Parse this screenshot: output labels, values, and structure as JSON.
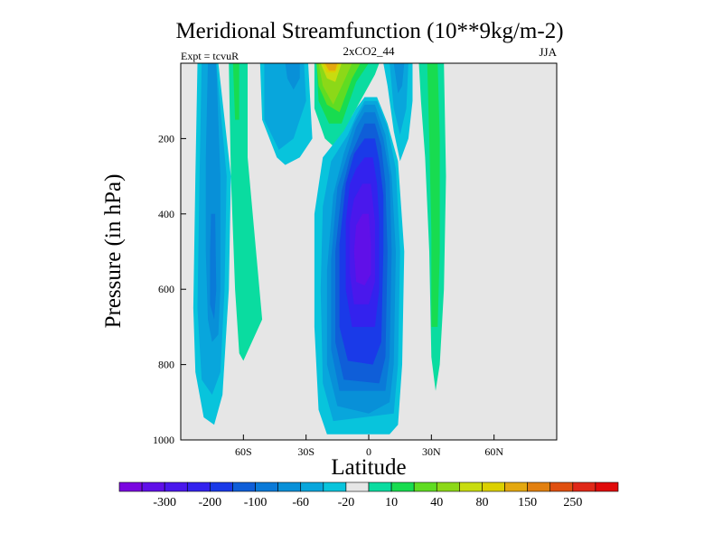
{
  "chart_data": {
    "type": "heatmap",
    "title": "Meridional Streamfunction (10**9kg/m-2)",
    "subtitle": "2xCO2_44",
    "left_label": "Expt = tcvuR",
    "right_label": "JJA",
    "xlabel": "Latitude",
    "ylabel": "Pressure (in hPa)",
    "xlim": [
      -90,
      90
    ],
    "ylim": [
      0,
      1000
    ],
    "y_inverted": true,
    "xticks": [
      {
        "value": -60,
        "label": "60S"
      },
      {
        "value": -30,
        "label": "30S"
      },
      {
        "value": 0,
        "label": "0"
      },
      {
        "value": 30,
        "label": "30N"
      },
      {
        "value": 60,
        "label": "60N"
      }
    ],
    "yticks": [
      {
        "value": 200,
        "label": "200"
      },
      {
        "value": 400,
        "label": "400"
      },
      {
        "value": 600,
        "label": "600"
      },
      {
        "value": 800,
        "label": "800"
      },
      {
        "value": 1000,
        "label": "1000"
      }
    ],
    "background_color": "#e6e6e6",
    "colorbar": {
      "colors": [
        "#7a06e0",
        "#6010e8",
        "#4a18ec",
        "#3322ee",
        "#1a3ae8",
        "#0f5ed8",
        "#0a7ad8",
        "#0890d8",
        "#08a6dc",
        "#08c4dc",
        "#e6e6e6",
        "#0adca0",
        "#18dc50",
        "#60dc22",
        "#8cd818",
        "#c8dc10",
        "#dcd000",
        "#e4a810",
        "#e28010",
        "#e05010",
        "#e02818",
        "#e00a0a"
      ],
      "labels": [
        {
          "after": 1,
          "text": "-300"
        },
        {
          "after": 3,
          "text": "-200"
        },
        {
          "after": 5,
          "text": "-100"
        },
        {
          "after": 7,
          "text": "-60"
        },
        {
          "after": 9,
          "text": "-20"
        },
        {
          "after": 11,
          "text": "10"
        },
        {
          "after": 13,
          "text": "40"
        },
        {
          "after": 15,
          "text": "80"
        },
        {
          "after": 17,
          "text": "150"
        },
        {
          "after": 19,
          "text": "250"
        }
      ]
    },
    "regions": [
      {
        "name": "sh-outer-cell",
        "level": -20,
        "color": "#08c4dc",
        "pts": [
          [
            -82,
            0
          ],
          [
            -72,
            0
          ],
          [
            -66,
            300
          ],
          [
            -67,
            600
          ],
          [
            -70,
            880
          ],
          [
            -74,
            960
          ],
          [
            -79,
            940
          ],
          [
            -83,
            820
          ],
          [
            -84,
            650
          ],
          [
            -83,
            300
          ]
        ]
      },
      {
        "name": "sh-outer-cell",
        "level": -40,
        "color": "#08a6dc",
        "pts": [
          [
            -80,
            0
          ],
          [
            -73,
            0
          ],
          [
            -68,
            300
          ],
          [
            -69,
            600
          ],
          [
            -71,
            820
          ],
          [
            -75,
            880
          ],
          [
            -80,
            840
          ],
          [
            -82,
            650
          ],
          [
            -81,
            300
          ]
        ]
      },
      {
        "name": "sh-outer-cell",
        "level": -60,
        "color": "#0890d8",
        "pts": [
          [
            -77,
            0
          ],
          [
            -73,
            0
          ],
          [
            -71,
            300
          ],
          [
            -71,
            600
          ],
          [
            -72,
            720
          ],
          [
            -75,
            740
          ],
          [
            -77,
            680
          ],
          [
            -78,
            500
          ],
          [
            -78,
            250
          ]
        ]
      },
      {
        "name": "sh-outer-cell",
        "level": -80,
        "color": "#0a7ad8",
        "pts": [
          [
            -75.5,
            400
          ],
          [
            -73.5,
            400
          ],
          [
            -73,
            600
          ],
          [
            -74,
            680
          ],
          [
            -76,
            640
          ],
          [
            -76,
            500
          ]
        ]
      },
      {
        "name": "sh-positive-band",
        "level": 10,
        "color": "#0adca0",
        "pts": [
          [
            -67,
            0
          ],
          [
            -58,
            0
          ],
          [
            -58,
            250
          ],
          [
            -51,
            680
          ],
          [
            -60,
            790
          ],
          [
            -62,
            770
          ],
          [
            -64,
            600
          ],
          [
            -66,
            300
          ]
        ]
      },
      {
        "name": "sh-positive-band",
        "level": 40,
        "color": "#18dc50",
        "pts": [
          [
            -65,
            0
          ],
          [
            -62,
            0
          ],
          [
            -62,
            150
          ],
          [
            -64,
            150
          ]
        ]
      },
      {
        "name": "sh-upper-cell",
        "level": -20,
        "color": "#08c4dc",
        "pts": [
          [
            -52,
            0
          ],
          [
            -29,
            0
          ],
          [
            -27,
            200
          ],
          [
            -33,
            250
          ],
          [
            -40,
            270
          ],
          [
            -44,
            250
          ],
          [
            -51,
            150
          ]
        ]
      },
      {
        "name": "sh-upper-cell",
        "level": -40,
        "color": "#08a6dc",
        "pts": [
          [
            -50,
            0
          ],
          [
            -31,
            0
          ],
          [
            -30,
            100
          ],
          [
            -36,
            200
          ],
          [
            -43,
            230
          ],
          [
            -50,
            150
          ]
        ]
      },
      {
        "name": "sh-upper-cell",
        "level": -60,
        "color": "#0890d8",
        "pts": [
          [
            -40,
            0
          ],
          [
            -33,
            0
          ],
          [
            -33,
            40
          ],
          [
            -36,
            70
          ],
          [
            -39,
            40
          ]
        ]
      },
      {
        "name": "sh-subtropical",
        "level": 10,
        "color": "#0adca0",
        "pts": [
          [
            -26,
            0
          ],
          [
            5,
            0
          ],
          [
            3,
            30
          ],
          [
            -8,
            140
          ],
          [
            -15,
            230
          ],
          [
            -21,
            200
          ],
          [
            -26,
            120
          ]
        ]
      },
      {
        "name": "sh-subtropical",
        "level": 40,
        "color": "#18dc50",
        "pts": [
          [
            -25,
            0
          ],
          [
            0,
            0
          ],
          [
            -6,
            50
          ],
          [
            -13,
            160
          ],
          [
            -19,
            160
          ],
          [
            -24,
            100
          ]
        ]
      },
      {
        "name": "sh-subtropical",
        "level": 80,
        "color": "#60dc22",
        "pts": [
          [
            -25,
            0
          ],
          [
            -4,
            0
          ],
          [
            -8,
            40
          ],
          [
            -14,
            130
          ],
          [
            -20,
            110
          ],
          [
            -24,
            60
          ]
        ]
      },
      {
        "name": "sh-subtropical",
        "level": 100,
        "color": "#8cd818",
        "pts": [
          [
            -24,
            0
          ],
          [
            -8,
            0
          ],
          [
            -12,
            50
          ],
          [
            -17,
            110
          ],
          [
            -22,
            60
          ]
        ]
      },
      {
        "name": "sh-subtropical",
        "level": 120,
        "color": "#c8dc10",
        "pts": [
          [
            -23,
            0
          ],
          [
            -13,
            0
          ],
          [
            -16,
            50
          ],
          [
            -20,
            40
          ]
        ]
      },
      {
        "name": "sh-subtropical",
        "level": 150,
        "color": "#dcd000",
        "pts": [
          [
            -22,
            0
          ],
          [
            -14,
            0
          ],
          [
            -16,
            25
          ],
          [
            -20,
            25
          ]
        ]
      },
      {
        "name": "sh-subtropical",
        "level": 200,
        "color": "#e4a810",
        "pts": [
          [
            -21,
            0
          ],
          [
            -15,
            0
          ],
          [
            -16,
            20
          ],
          [
            -19,
            20
          ]
        ]
      },
      {
        "name": "hadley-cell",
        "level": -20,
        "color": "#08c4dc",
        "pts": [
          [
            -2,
            90
          ],
          [
            4,
            90
          ],
          [
            9,
            160
          ],
          [
            14,
            260
          ],
          [
            17,
            500
          ],
          [
            16,
            800
          ],
          [
            14,
            960
          ],
          [
            10,
            985
          ],
          [
            -20,
            985
          ],
          [
            -24,
            920
          ],
          [
            -26,
            700
          ],
          [
            -26,
            400
          ],
          [
            -22,
            250
          ],
          [
            -12,
            180
          ],
          [
            -6,
            120
          ]
        ]
      },
      {
        "name": "hadley-cell",
        "level": -40,
        "color": "#08a6dc",
        "pts": [
          [
            -2,
            100
          ],
          [
            4,
            100
          ],
          [
            9,
            170
          ],
          [
            13,
            280
          ],
          [
            15,
            500
          ],
          [
            14,
            800
          ],
          [
            12,
            930
          ],
          [
            -17,
            950
          ],
          [
            -22,
            850
          ],
          [
            -23,
            600
          ],
          [
            -22,
            380
          ],
          [
            -18,
            260
          ],
          [
            -10,
            190
          ],
          [
            -6,
            140
          ]
        ]
      },
      {
        "name": "hadley-cell",
        "level": -60,
        "color": "#0890d8",
        "pts": [
          [
            -2,
            110
          ],
          [
            3,
            110
          ],
          [
            8,
            190
          ],
          [
            11,
            300
          ],
          [
            13,
            500
          ],
          [
            12,
            800
          ],
          [
            10,
            900
          ],
          [
            0,
            930
          ],
          [
            -15,
            910
          ],
          [
            -20,
            800
          ],
          [
            -20,
            550
          ],
          [
            -17,
            350
          ],
          [
            -12,
            240
          ],
          [
            -7,
            160
          ]
        ]
      },
      {
        "name": "hadley-cell",
        "level": -80,
        "color": "#0a7ad8",
        "pts": [
          [
            -2,
            130
          ],
          [
            3,
            130
          ],
          [
            7,
            200
          ],
          [
            10,
            300
          ],
          [
            11,
            500
          ],
          [
            10,
            780
          ],
          [
            8,
            870
          ],
          [
            -14,
            870
          ],
          [
            -18,
            760
          ],
          [
            -18,
            520
          ],
          [
            -15,
            330
          ],
          [
            -10,
            240
          ],
          [
            -6,
            170
          ]
        ]
      },
      {
        "name": "hadley-cell",
        "level": -100,
        "color": "#0f5ed8",
        "pts": [
          [
            -2,
            160
          ],
          [
            3,
            160
          ],
          [
            6,
            220
          ],
          [
            8,
            320
          ],
          [
            9,
            500
          ],
          [
            8,
            780
          ],
          [
            5,
            850
          ],
          [
            -12,
            840
          ],
          [
            -16,
            740
          ],
          [
            -16,
            500
          ],
          [
            -13,
            340
          ],
          [
            -9,
            250
          ]
        ]
      },
      {
        "name": "hadley-cell",
        "level": -150,
        "color": "#1a3ae8",
        "pts": [
          [
            -2,
            200
          ],
          [
            3,
            200
          ],
          [
            5,
            260
          ],
          [
            7,
            350
          ],
          [
            7,
            500
          ],
          [
            6,
            740
          ],
          [
            2,
            800
          ],
          [
            -10,
            790
          ],
          [
            -14,
            700
          ],
          [
            -14,
            480
          ],
          [
            -11,
            320
          ],
          [
            -7,
            240
          ]
        ]
      },
      {
        "name": "hadley-cell",
        "level": -200,
        "color": "#3322ee",
        "pts": [
          [
            -2,
            250
          ],
          [
            2,
            250
          ],
          [
            4,
            320
          ],
          [
            5,
            420
          ],
          [
            5,
            600
          ],
          [
            3,
            700
          ],
          [
            -8,
            700
          ],
          [
            -11,
            600
          ],
          [
            -11,
            420
          ],
          [
            -9,
            320
          ],
          [
            -6,
            280
          ]
        ]
      },
      {
        "name": "hadley-cell",
        "level": -250,
        "color": "#4a18ec",
        "pts": [
          [
            -3,
            320
          ],
          [
            1,
            320
          ],
          [
            3,
            420
          ],
          [
            3,
            580
          ],
          [
            0,
            640
          ],
          [
            -7,
            640
          ],
          [
            -9,
            560
          ],
          [
            -9,
            420
          ],
          [
            -7,
            360
          ]
        ]
      },
      {
        "name": "hadley-cell",
        "level": -300,
        "color": "#6010e8",
        "pts": [
          [
            -3,
            400
          ],
          [
            0,
            400
          ],
          [
            1,
            480
          ],
          [
            1,
            560
          ],
          [
            -2,
            590
          ],
          [
            -6,
            580
          ],
          [
            -7,
            500
          ],
          [
            -6,
            430
          ]
        ]
      },
      {
        "name": "nh-negative-band",
        "level": -20,
        "color": "#08c4dc",
        "pts": [
          [
            7,
            0
          ],
          [
            21,
            0
          ],
          [
            21,
            100
          ],
          [
            19,
            200
          ],
          [
            15,
            260
          ],
          [
            12,
            180
          ],
          [
            9,
            60
          ]
        ]
      },
      {
        "name": "nh-negative-band",
        "level": -40,
        "color": "#08a6dc",
        "pts": [
          [
            10,
            0
          ],
          [
            19,
            0
          ],
          [
            18,
            120
          ],
          [
            15,
            190
          ],
          [
            12,
            120
          ]
        ]
      },
      {
        "name": "nh-negative-band",
        "level": -60,
        "color": "#0890d8",
        "pts": [
          [
            12,
            0
          ],
          [
            17,
            0
          ],
          [
            16,
            60
          ],
          [
            14,
            80
          ]
        ]
      },
      {
        "name": "nh-outer-cell",
        "level": 10,
        "color": "#0adca0",
        "pts": [
          [
            24,
            0
          ],
          [
            36,
            0
          ],
          [
            37,
            300
          ],
          [
            36,
            600
          ],
          [
            34,
            800
          ],
          [
            32,
            870
          ],
          [
            30,
            780
          ],
          [
            29,
            500
          ],
          [
            27,
            250
          ],
          [
            25,
            100
          ]
        ]
      },
      {
        "name": "nh-outer-cell",
        "level": 40,
        "color": "#18dc50",
        "pts": [
          [
            28,
            0
          ],
          [
            33,
            0
          ],
          [
            34,
            200
          ],
          [
            34,
            500
          ],
          [
            33,
            700
          ],
          [
            30,
            700
          ],
          [
            30,
            450
          ],
          [
            29,
            200
          ]
        ]
      }
    ]
  }
}
